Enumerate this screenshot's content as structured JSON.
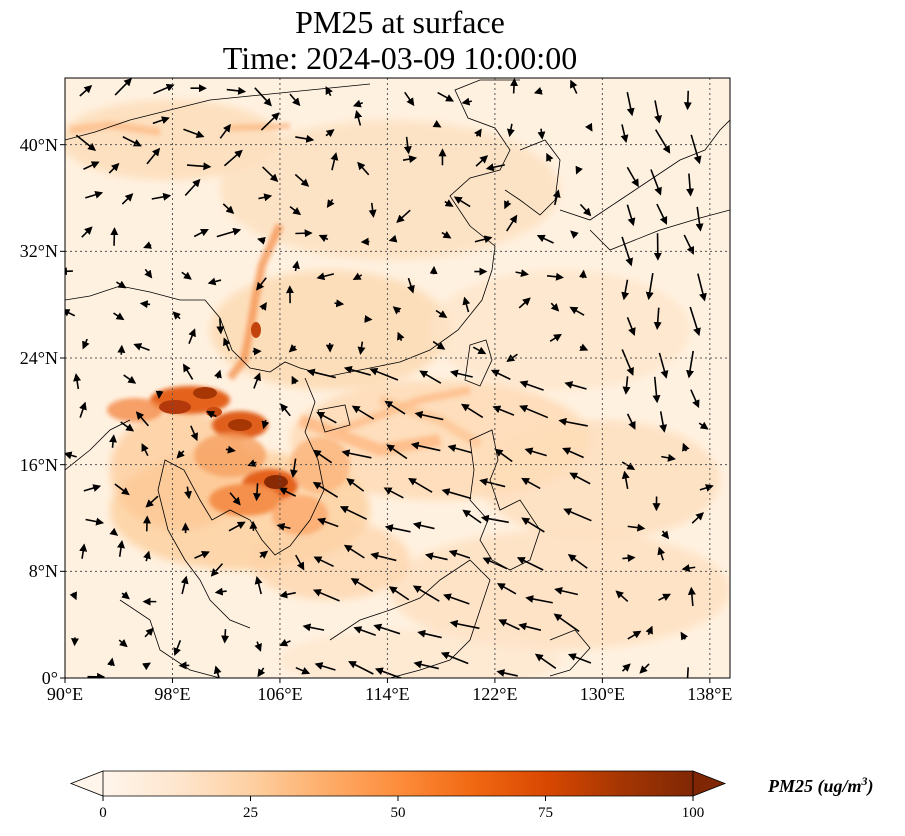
{
  "title_line1": "PM25 at surface",
  "title_line2": "Time: 2024-03-09 10:00:00",
  "map": {
    "lon_range": [
      90,
      139.5
    ],
    "lat_range": [
      0,
      45
    ],
    "lat_ticks": [
      {
        "value": 40,
        "label": "40°N"
      },
      {
        "value": 32,
        "label": "32°N"
      },
      {
        "value": 24,
        "label": "24°N"
      },
      {
        "value": 16,
        "label": "16°N"
      },
      {
        "value": 8,
        "label": "8°N"
      },
      {
        "value": 0,
        "label": "0°"
      }
    ],
    "lon_ticks": [
      {
        "value": 90,
        "label": "90°E"
      },
      {
        "value": 98,
        "label": "98°E"
      },
      {
        "value": 106,
        "label": "106°E"
      },
      {
        "value": 114,
        "label": "114°E"
      },
      {
        "value": 122,
        "label": "122°E"
      },
      {
        "value": 130,
        "label": "130°E"
      },
      {
        "value": 138,
        "label": "138°E"
      }
    ],
    "gridlines": "dotted"
  },
  "colorbar": {
    "label": "PM25 (ug/m$^3$)",
    "label_base": "PM25 (ug/m",
    "label_sup": "3",
    "label_close": ")",
    "ticks": [
      "0",
      "25",
      "50",
      "75",
      "100"
    ],
    "range": [
      0,
      100
    ],
    "extend": "both",
    "colors": [
      "#fff5eb",
      "#fee6ce",
      "#fdd0a2",
      "#fdae6b",
      "#fd8d3c",
      "#f16913",
      "#d94801",
      "#a63603",
      "#7f2704"
    ]
  }
}
